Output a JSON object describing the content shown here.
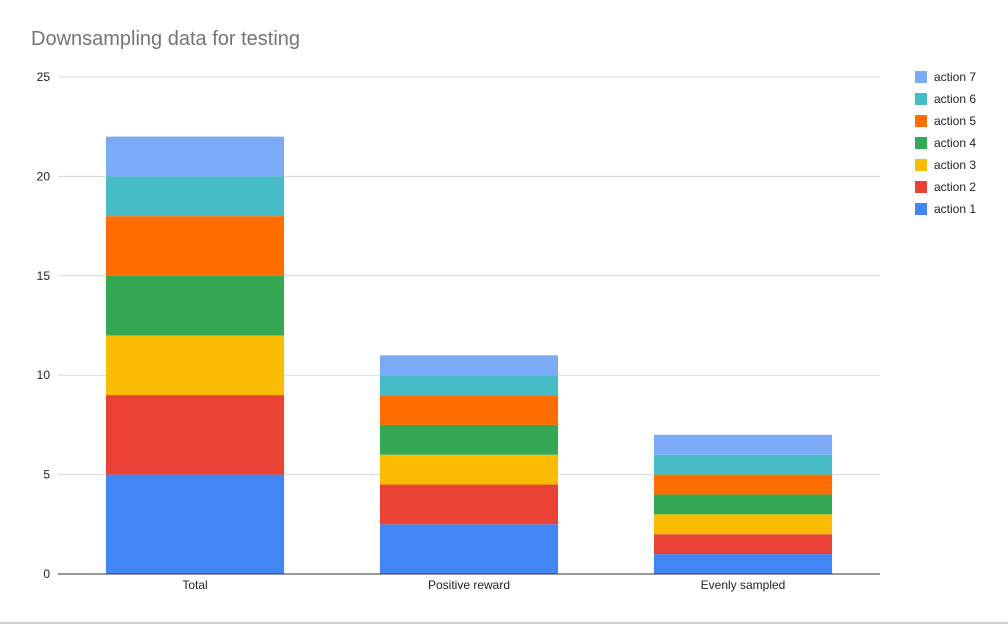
{
  "chart_data": {
    "type": "bar",
    "stacked": true,
    "title": "Downsampling data for testing",
    "xlabel": "",
    "ylabel": "",
    "categories": [
      "Total",
      "Positive reward",
      "Evenly sampled"
    ],
    "ylim": [
      0,
      25
    ],
    "yticks": [
      0,
      5,
      10,
      15,
      20,
      25
    ],
    "grid": true,
    "legend": "right",
    "series": [
      {
        "name": "action 1",
        "color": "#4285F4",
        "values": [
          5,
          2.5,
          1
        ]
      },
      {
        "name": "action 2",
        "color": "#EA4335",
        "values": [
          4,
          2,
          1
        ]
      },
      {
        "name": "action 3",
        "color": "#FBBC04",
        "values": [
          3,
          1.5,
          1
        ]
      },
      {
        "name": "action 4",
        "color": "#34A853",
        "values": [
          3,
          1.5,
          1
        ]
      },
      {
        "name": "action 5",
        "color": "#FF6D01",
        "values": [
          3,
          1.5,
          1
        ]
      },
      {
        "name": "action 6",
        "color": "#46BDC6",
        "values": [
          2,
          1,
          1
        ]
      },
      {
        "name": "action 7",
        "color": "#7BAAF7",
        "values": [
          2,
          1,
          1
        ]
      }
    ]
  }
}
